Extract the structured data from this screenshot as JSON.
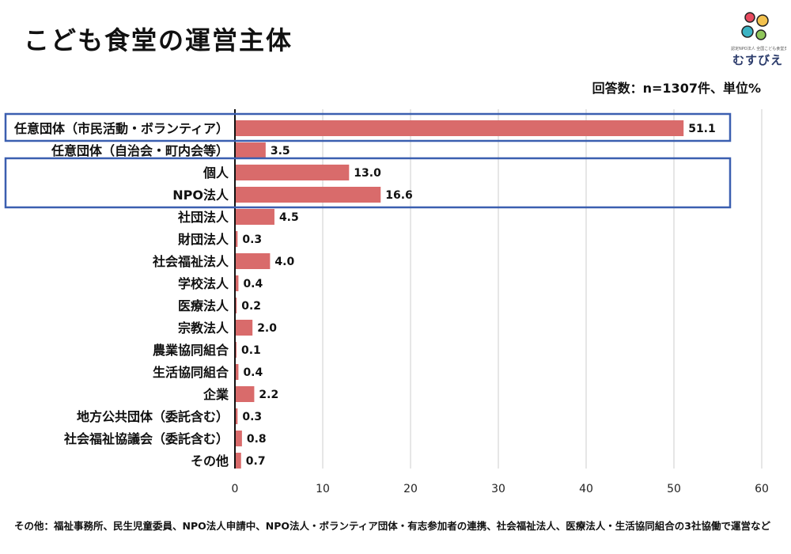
{
  "header": {
    "title": "こども食堂の運営主体",
    "note": "回答数：n=1307件、単位%"
  },
  "logo": {
    "name": "むすびえ",
    "tagline": "認定NPO法人 全国こども食堂支援センター"
  },
  "footer": {
    "note": "その他：福祉事務所、民生児童委員、NPO法人申請中、NPO法人・ボランティア団体・有志参加者の連携、社会福祉法人、医療法人・生活協同組合の3社協働で運営など"
  },
  "colors": {
    "bar": "#d96b6b",
    "highlight_box": "#3b5fb0",
    "grid": "#cccccc",
    "logo_dots": [
      "#e84a5f",
      "#f2c14e",
      "#3cb4c4",
      "#8fc65a"
    ]
  },
  "chart_data": {
    "type": "bar",
    "orientation": "horizontal",
    "categories": [
      "任意団体（市民活動・ボランティア）",
      "任意団体（自治会・町内会等）",
      "個人",
      "NPO法人",
      "社団法人",
      "財団法人",
      "社会福祉法人",
      "学校法人",
      "医療法人",
      "宗教法人",
      "農業協同組合",
      "生活協同組合",
      "企業",
      "地方公共団体（委託含む）",
      "社会福祉協議会（委託含む）",
      "その他"
    ],
    "values": [
      51.1,
      3.5,
      13.0,
      16.6,
      4.5,
      0.3,
      4.0,
      0.4,
      0.2,
      2.0,
      0.1,
      0.4,
      2.2,
      0.3,
      0.8,
      0.7
    ],
    "value_labels": [
      "51.1",
      "3.5",
      "13.0",
      "16.6",
      "4.5",
      "0.3",
      "4.0",
      "0.4",
      "0.2",
      "2.0",
      "0.1",
      "0.4",
      "2.2",
      "0.3",
      "0.8",
      "0.7"
    ],
    "xlim": [
      0,
      60
    ],
    "xticks": [
      0,
      10,
      20,
      30,
      40,
      50,
      60
    ],
    "grid": true,
    "highlight_groups": [
      [
        0
      ],
      [
        2,
        3
      ]
    ]
  }
}
